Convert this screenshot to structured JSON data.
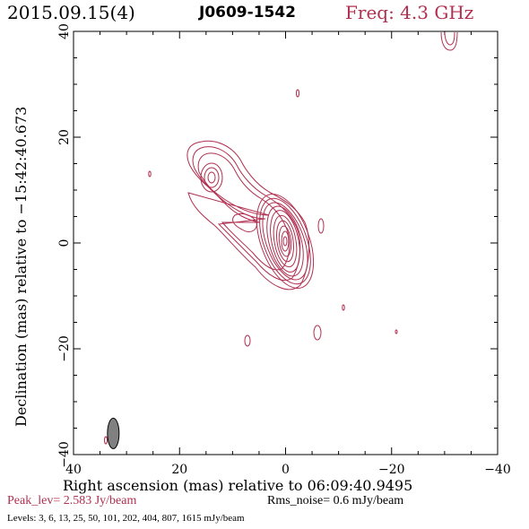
{
  "header": {
    "date": "2015.09.15(4)",
    "source": "J0609-1542",
    "freq": "Freq: 4.3 GHz"
  },
  "chart_data": {
    "type": "contour",
    "xlabel": "Right ascension (mas) relative to 06:09:40.9495",
    "ylabel": "Declination (mas) relative to −15:42:40.673",
    "xlim": [
      40,
      -40
    ],
    "ylim": [
      -40,
      40
    ],
    "xticks": [
      "40",
      "20",
      "0",
      "−20",
      "−40"
    ],
    "yticks": [
      "40",
      "20",
      "0",
      "−20",
      "−40"
    ],
    "peak_label": "Peak_lev=  2.583 Jy/beam",
    "rms_label": "Rms_noise=  0.6 mJy/beam",
    "levels_label": "Levels:   3,   6,  13,  25,  50,  101,  202,  404,  807,  1615 mJy/beam",
    "contour_color": "#b03050",
    "beam": {
      "x": 32.5,
      "y": -36,
      "major_mas": 6,
      "minor_mas": 2.2,
      "fill": "#808080"
    }
  }
}
